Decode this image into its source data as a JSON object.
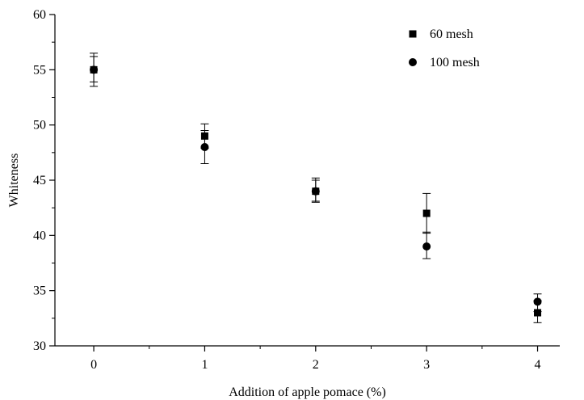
{
  "chart_data": {
    "type": "scatter",
    "title": "",
    "xlabel": "Addition of apple pomace (%)",
    "ylabel": "Whiteness",
    "xlim": [
      -0.35,
      4.2
    ],
    "ylim": [
      30,
      60
    ],
    "x_ticks": [
      0,
      1,
      2,
      3,
      4
    ],
    "y_ticks": [
      30,
      35,
      40,
      45,
      50,
      55,
      60
    ],
    "grid": false,
    "legend_position": "top-right",
    "series": [
      {
        "name": "60 mesh",
        "marker": "square",
        "color": "#000000",
        "x": [
          0,
          1,
          2,
          3,
          4
        ],
        "y": [
          55,
          49,
          44,
          42,
          33
        ],
        "error_low": [
          53.9,
          47.9,
          43.1,
          40.2,
          32.1
        ],
        "error_high": [
          56.2,
          50.1,
          45.0,
          43.8,
          34.1
        ]
      },
      {
        "name": "100 mesh",
        "marker": "circle",
        "color": "#000000",
        "x": [
          0,
          1,
          2,
          3,
          4
        ],
        "y": [
          55,
          48,
          44,
          39,
          34
        ],
        "error_low": [
          53.5,
          46.5,
          43.0,
          37.9,
          33.1
        ],
        "error_high": [
          56.5,
          49.5,
          45.2,
          40.3,
          34.7
        ]
      }
    ]
  }
}
